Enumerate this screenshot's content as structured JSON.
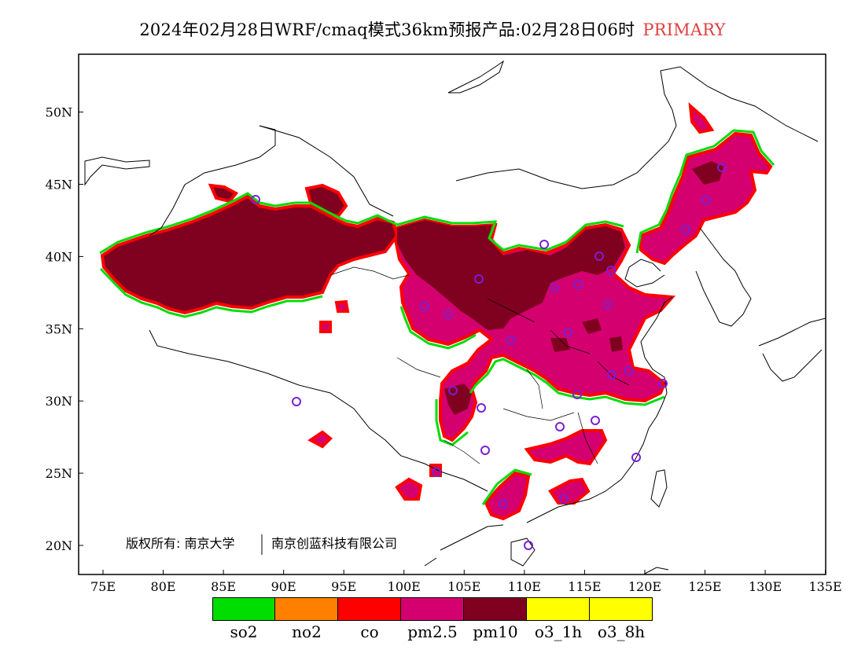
{
  "title": {
    "main": "2024年02月28日WRF/cmaq模式36km预报产品:02月28日06时",
    "tag": "PRIMARY",
    "tag_color": "#e04040"
  },
  "axes": {
    "x_ticks": [
      "75E",
      "80E",
      "85E",
      "90E",
      "95E",
      "100E",
      "105E",
      "110E",
      "115E",
      "120E",
      "125E",
      "130E",
      "135E"
    ],
    "y_ticks": [
      "20N",
      "25N",
      "30N",
      "35N",
      "40N",
      "45N",
      "50N"
    ]
  },
  "copyright": {
    "left": "版权所有: 南京大学",
    "right": "南京创蓝科技有限公司"
  },
  "legend": [
    {
      "label": "so2",
      "color": "#00dd00"
    },
    {
      "label": "no2",
      "color": "#ff8000"
    },
    {
      "label": "co",
      "color": "#ff0000"
    },
    {
      "label": "pm2.5",
      "color": "#d4006f"
    },
    {
      "label": "pm10",
      "color": "#800020"
    },
    {
      "label": "o3_1h",
      "color": "#ffff00"
    },
    {
      "label": "o3_8h",
      "color": "#ffff00"
    }
  ],
  "colors": {
    "pm10": "#800020",
    "pm25": "#d4006f",
    "co": "#ff0000",
    "no2": "#ff8000",
    "so2": "#00dd00",
    "station": "#7a1fd6"
  }
}
